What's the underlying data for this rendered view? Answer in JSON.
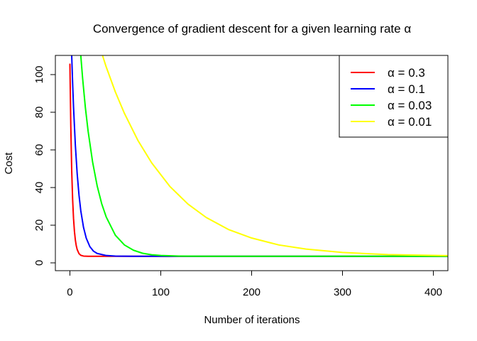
{
  "chart_data": {
    "type": "line",
    "title": "Convergence of gradient descent for a given learning rate α",
    "xlabel": "Number of iterations",
    "ylabel": "Cost",
    "xlim": [
      -16,
      416
    ],
    "ylim": [
      0,
      110
    ],
    "x_ticks": [
      0,
      100,
      200,
      300,
      400
    ],
    "y_ticks": [
      0,
      20,
      40,
      60,
      80,
      100
    ],
    "grid": false,
    "legend_position": "top-right",
    "series": [
      {
        "name": "α = 0.3",
        "color": "#ff0000",
        "x": [
          0,
          1,
          2,
          3,
          4,
          5,
          6,
          7,
          8,
          10,
          12,
          15,
          20,
          30,
          50,
          100,
          200,
          300,
          416
        ],
        "y": [
          105.5,
          72.3,
          48.8,
          33.7,
          23.5,
          16.7,
          12.1,
          9.1,
          7.1,
          4.9,
          4.0,
          3.6,
          3.5,
          3.5,
          3.5,
          3.5,
          3.5,
          3.5,
          3.5
        ]
      },
      {
        "name": "α = 0.1",
        "color": "#0000ff",
        "x": [
          2,
          3,
          4,
          6,
          8,
          10,
          12,
          15,
          18,
          22,
          26,
          30,
          40,
          50,
          70,
          100,
          200,
          300,
          416
        ],
        "y": [
          110,
          95.4,
          82.7,
          62.5,
          47.4,
          36.1,
          27.6,
          18.8,
          13.1,
          8.6,
          6.2,
          5.0,
          3.9,
          3.6,
          3.5,
          3.5,
          3.5,
          3.5,
          3.5
        ]
      },
      {
        "name": "α = 0.03",
        "color": "#00ff00",
        "x": [
          12,
          14,
          17,
          20,
          25,
          30,
          35,
          40,
          50,
          60,
          70,
          80,
          90,
          100,
          120,
          150,
          200,
          300,
          416
        ],
        "y": [
          110,
          98.0,
          82.6,
          70.1,
          53.5,
          40.9,
          31.4,
          24.3,
          14.7,
          9.5,
          6.7,
          5.1,
          4.3,
          3.9,
          3.6,
          3.5,
          3.5,
          3.5,
          3.5
        ]
      },
      {
        "name": "α = 0.01",
        "color": "#ffff00",
        "x": [
          36,
          40,
          50,
          60,
          75,
          90,
          110,
          130,
          150,
          175,
          200,
          230,
          260,
          300,
          350,
          416
        ],
        "y": [
          110,
          104.0,
          90.8,
          79.4,
          64.9,
          53.1,
          40.6,
          31.2,
          24.1,
          17.6,
          13.2,
          9.5,
          7.3,
          5.5,
          4.4,
          3.8
        ]
      }
    ]
  }
}
